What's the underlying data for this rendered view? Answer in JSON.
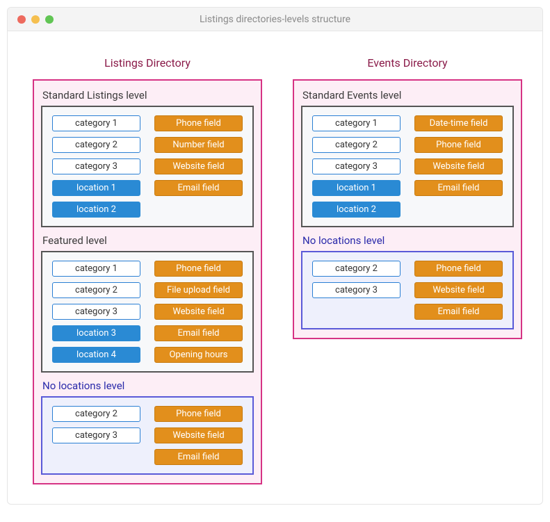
{
  "window_title": "Listings directories-levels structure",
  "colors": {
    "traffic_red": "#ed6a5e",
    "traffic_yellow": "#f5bf4f",
    "traffic_green": "#61c554",
    "dir_border": "#d63384",
    "dir_bg": "#fdeef6",
    "dir_title": "#8a1b49",
    "gray_border": "#555555",
    "gray_bg": "#f7f8fa",
    "blue_border": "#5a5ad8",
    "blue_bg": "#eef0fc",
    "chip_white_border": "#2a7fd4",
    "chip_blue": "#2a8ad4",
    "chip_orange": "#e28f1c"
  },
  "directories": [
    {
      "title": "Listings Directory",
      "levels": [
        {
          "title": "Standard Listings level",
          "style": "gray",
          "left": [
            {
              "label": "category 1",
              "variant": "white"
            },
            {
              "label": "category 2",
              "variant": "white"
            },
            {
              "label": "category 3",
              "variant": "white"
            },
            {
              "label": "location 1",
              "variant": "blue"
            },
            {
              "label": "location 2",
              "variant": "blue"
            }
          ],
          "right": [
            {
              "label": "Phone field",
              "variant": "orange"
            },
            {
              "label": "Number field",
              "variant": "orange"
            },
            {
              "label": "Website field",
              "variant": "orange"
            },
            {
              "label": "Email field",
              "variant": "orange"
            }
          ]
        },
        {
          "title": "Featured level",
          "style": "gray",
          "left": [
            {
              "label": "category 1",
              "variant": "white"
            },
            {
              "label": "category 2",
              "variant": "white"
            },
            {
              "label": "category 3",
              "variant": "white"
            },
            {
              "label": "location 3",
              "variant": "blue"
            },
            {
              "label": "location 4",
              "variant": "blue"
            }
          ],
          "right": [
            {
              "label": "Phone field",
              "variant": "orange"
            },
            {
              "label": "File upload field",
              "variant": "orange"
            },
            {
              "label": "Website field",
              "variant": "orange"
            },
            {
              "label": "Email field",
              "variant": "orange"
            },
            {
              "label": "Opening hours",
              "variant": "orange"
            }
          ]
        },
        {
          "title": "No locations level",
          "style": "blue",
          "left": [
            {
              "label": "category 2",
              "variant": "white"
            },
            {
              "label": "category 3",
              "variant": "white"
            }
          ],
          "right": [
            {
              "label": "Phone field",
              "variant": "orange"
            },
            {
              "label": "Website field",
              "variant": "orange"
            },
            {
              "label": "Email field",
              "variant": "orange"
            }
          ]
        }
      ]
    },
    {
      "title": "Events Directory",
      "levels": [
        {
          "title": "Standard Events level",
          "style": "gray",
          "left": [
            {
              "label": "category 1",
              "variant": "white"
            },
            {
              "label": "category 2",
              "variant": "white"
            },
            {
              "label": "category 3",
              "variant": "white"
            },
            {
              "label": "location 1",
              "variant": "blue"
            },
            {
              "label": "location 2",
              "variant": "blue"
            }
          ],
          "right": [
            {
              "label": "Date-time field",
              "variant": "orange"
            },
            {
              "label": "Phone field",
              "variant": "orange"
            },
            {
              "label": "Website field",
              "variant": "orange"
            },
            {
              "label": "Email field",
              "variant": "orange"
            }
          ]
        },
        {
          "title": "No locations level",
          "style": "blue",
          "left": [
            {
              "label": "category 2",
              "variant": "white"
            },
            {
              "label": "category 3",
              "variant": "white"
            }
          ],
          "right": [
            {
              "label": "Phone field",
              "variant": "orange"
            },
            {
              "label": "Website field",
              "variant": "orange"
            },
            {
              "label": "Email field",
              "variant": "orange"
            }
          ]
        }
      ]
    }
  ]
}
